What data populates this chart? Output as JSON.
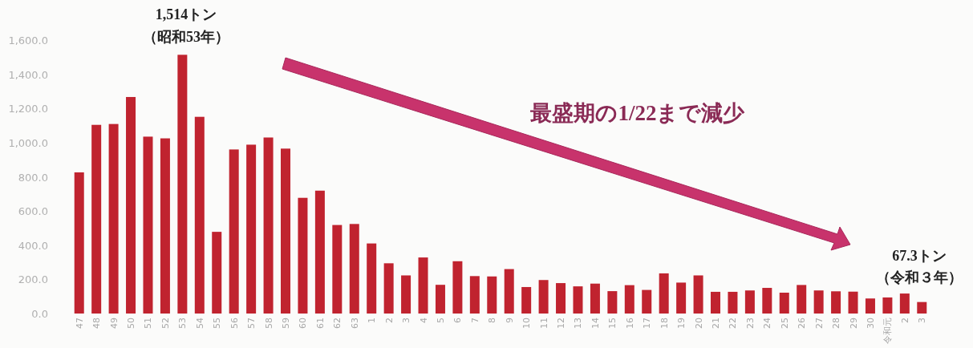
{
  "chart_data": {
    "type": "bar",
    "color": "#c0232f",
    "ylim": [
      0,
      1600
    ],
    "yticks": [
      {
        "value": 0,
        "label": "0.0"
      },
      {
        "value": 200,
        "label": "200.0"
      },
      {
        "value": 400,
        "label": "400.0"
      },
      {
        "value": 600,
        "label": "600.0"
      },
      {
        "value": 800,
        "label": "800.0"
      },
      {
        "value": 1000,
        "label": "1,000.0"
      },
      {
        "value": 1200,
        "label": "1,200.0"
      },
      {
        "value": 1400,
        "label": "1,400.0"
      },
      {
        "value": 1600,
        "label": "1,600.0"
      }
    ],
    "categories": [
      "47",
      "48",
      "49",
      "50",
      "51",
      "52",
      "53",
      "54",
      "55",
      "56",
      "57",
      "58",
      "59",
      "60",
      "61",
      "62",
      "63",
      "1",
      "2",
      "3",
      "4",
      "5",
      "6",
      "7",
      "8",
      "9",
      "10",
      "11",
      "12",
      "13",
      "14",
      "15",
      "16",
      "17",
      "18",
      "19",
      "20",
      "21",
      "22",
      "23",
      "24",
      "25",
      "26",
      "27",
      "28",
      "29",
      "30",
      "令和元",
      "2",
      "3"
    ],
    "values": [
      826,
      1104,
      1109,
      1267,
      1035,
      1025,
      1514,
      1151,
      478,
      960,
      988,
      1030,
      965,
      677,
      719,
      518,
      524,
      410,
      294,
      223,
      328,
      168,
      306,
      219,
      217,
      260,
      155,
      196,
      178,
      159,
      175,
      131,
      166,
      138,
      235,
      181,
      223,
      127,
      127,
      135,
      150,
      122,
      167,
      135,
      130,
      128,
      88,
      94,
      117,
      67.3
    ],
    "annotations": [
      "1,514トン",
      "（昭和53年）",
      "67.3トン",
      "（令和３年）",
      "最盛期の1/22まで減少"
    ]
  }
}
